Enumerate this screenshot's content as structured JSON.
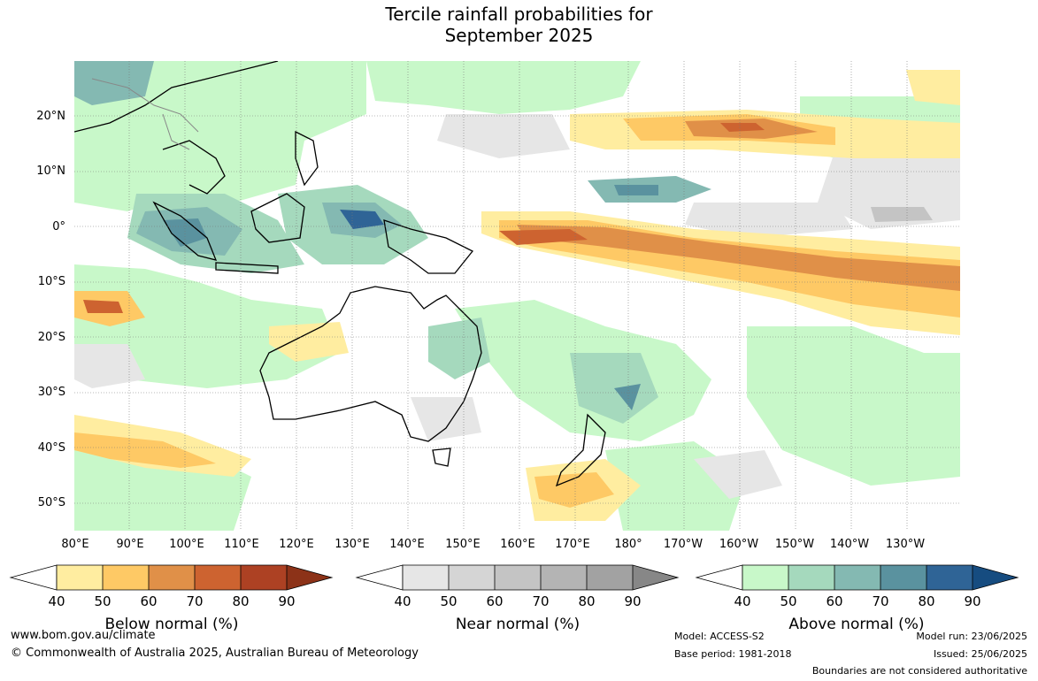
{
  "title_line1": "Tercile rainfall probabilities for",
  "title_line2": "September 2025",
  "lat_labels": [
    "20°N",
    "10°N",
    "0°",
    "10°S",
    "20°S",
    "30°S",
    "40°S",
    "50°S"
  ],
  "lon_labels": [
    "80°E",
    "90°E",
    "100°E",
    "110°E",
    "120°E",
    "130°E",
    "140°E",
    "150°E",
    "160°E",
    "170°E",
    "180°",
    "170°W",
    "160°W",
    "150°W",
    "140°W",
    "130°W"
  ],
  "legends": [
    {
      "title": "Below normal (%)",
      "ticks": [
        "40",
        "50",
        "60",
        "70",
        "80",
        "90"
      ],
      "colors": [
        "#ffeda0",
        "#fec965",
        "#e09048",
        "#cd6330",
        "#ad4123",
        "#8c3218"
      ]
    },
    {
      "title": "Near normal (%)",
      "ticks": [
        "40",
        "50",
        "60",
        "70",
        "80",
        "90"
      ],
      "colors": [
        "#e6e6e6",
        "#d5d5d5",
        "#c4c4c4",
        "#b4b4b4",
        "#a2a2a2",
        "#878787"
      ]
    },
    {
      "title": "Above normal (%)",
      "ticks": [
        "40",
        "50",
        "60",
        "70",
        "80",
        "90"
      ],
      "colors": [
        "#c8f8c9",
        "#a5d9bd",
        "#84b9b2",
        "#5a929f",
        "#2f6496",
        "#164c80"
      ]
    }
  ],
  "footer": {
    "url": "www.bom.gov.au/climate",
    "copyright": "© Commonwealth of Australia 2025, Australian Bureau of Meteorology",
    "model": "Model: ACCESS-S2",
    "base_period": "Base period: 1981-2018",
    "model_run": "Model run: 23/06/2025",
    "issued": "Issued: 25/06/2025",
    "boundaries": "Boundaries are not considered authoritative"
  }
}
